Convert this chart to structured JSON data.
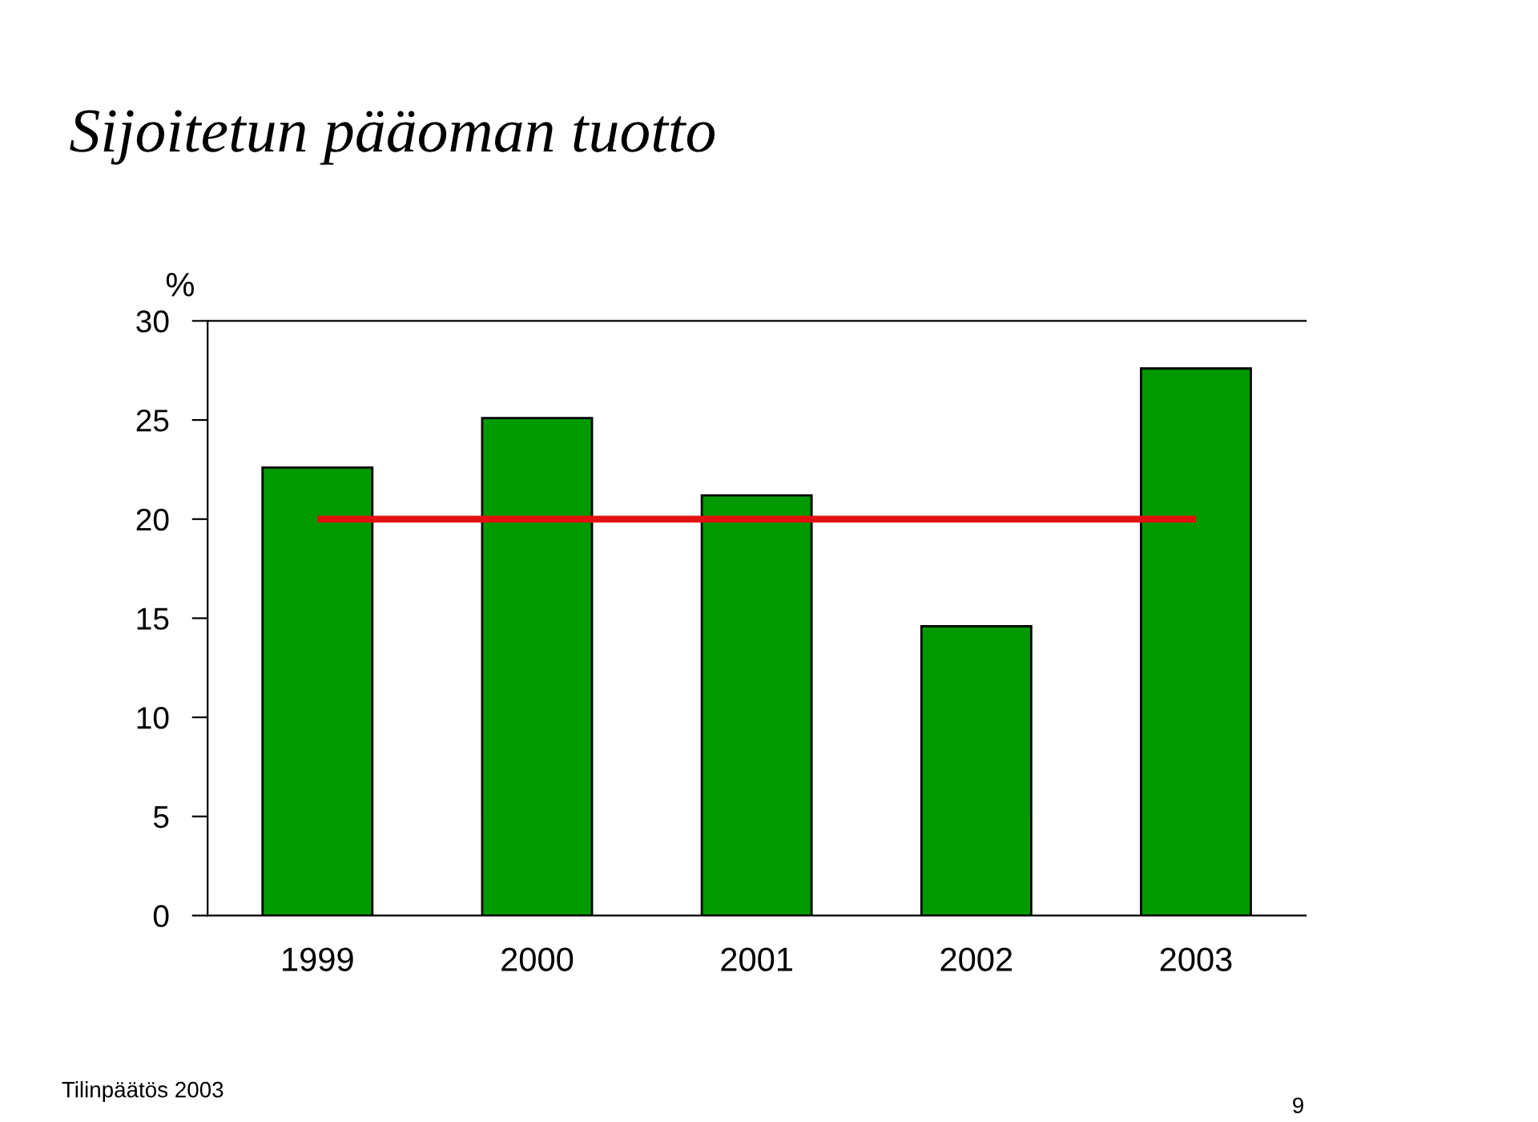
{
  "chart_data": {
    "type": "bar",
    "title": "Sijoitetun pääoman tuotto",
    "ylabel": "%",
    "categories": [
      "1999",
      "2000",
      "2001",
      "2002",
      "2003"
    ],
    "values": [
      22.6,
      25.1,
      21.2,
      14.6,
      27.6
    ],
    "color": "#009900",
    "ylim": [
      0,
      30
    ],
    "yticks": [
      0,
      5,
      10,
      15,
      20,
      25,
      30
    ],
    "grid": false,
    "ref_lines": [
      {
        "axis": "y",
        "value": 20,
        "color": "#e31010"
      }
    ],
    "annotations": [
      "Tilinpäätös 2003",
      "9"
    ]
  }
}
